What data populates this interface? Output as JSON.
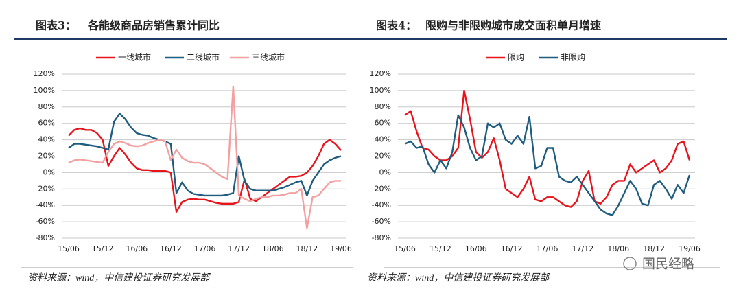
{
  "chart_data": [
    {
      "type": "line",
      "title_prefix": "图表3：",
      "title": "各能级商品房销售累计同比",
      "source": "资料来源：wind，中信建投证券研究发展部",
      "legend": "top",
      "grid": true,
      "categories": [
        "15/06",
        null,
        null,
        null,
        null,
        null,
        "15/12",
        null,
        null,
        null,
        null,
        null,
        "16/06",
        null,
        null,
        null,
        null,
        null,
        "16/12",
        null,
        null,
        null,
        null,
        null,
        "17/06",
        null,
        null,
        null,
        null,
        null,
        "17/12",
        null,
        null,
        null,
        null,
        null,
        "18/06",
        null,
        null,
        null,
        null,
        null,
        "18/12",
        null,
        null,
        null,
        null,
        null,
        "19/06"
      ],
      "ylim": [
        -80,
        120
      ],
      "yticks": [
        {
          "value": 120,
          "label": "120%"
        },
        {
          "value": 100,
          "label": "100%"
        },
        {
          "value": 80,
          "label": "80%"
        },
        {
          "value": 60,
          "label": "60%"
        },
        {
          "value": 40,
          "label": "40%"
        },
        {
          "value": 20,
          "label": "20%"
        },
        {
          "value": 0,
          "label": "0%"
        },
        {
          "value": -20,
          "label": "-20%"
        },
        {
          "value": -40,
          "label": "-40%"
        },
        {
          "value": -60,
          "label": "-60%"
        },
        {
          "value": -80,
          "label": "-80%"
        }
      ],
      "series": [
        {
          "name": "一线城市",
          "color": "#e8141b",
          "values": [
            45,
            52,
            54,
            52,
            52,
            48,
            40,
            8,
            20,
            30,
            22,
            12,
            5,
            3,
            3,
            2,
            2,
            2,
            0,
            -48,
            -36,
            -33,
            -32,
            -33,
            -33,
            -35,
            -37,
            -38,
            -38,
            -38,
            -36,
            -8,
            -32,
            -35,
            -30,
            -25,
            -20,
            -15,
            -10,
            -5,
            -5,
            -4,
            0,
            8,
            20,
            35,
            40,
            35,
            27
          ]
        },
        {
          "name": "二线城市",
          "color": "#1f5c7f",
          "values": [
            30,
            35,
            35,
            34,
            33,
            32,
            30,
            28,
            62,
            72,
            65,
            55,
            48,
            46,
            45,
            42,
            40,
            38,
            35,
            -25,
            -12,
            -22,
            -26,
            -27,
            -28,
            -28,
            -28,
            -28,
            -27,
            -25,
            20,
            -10,
            -20,
            -22,
            -22,
            -22,
            -22,
            -20,
            -18,
            -15,
            -12,
            -10,
            -28,
            -10,
            0,
            10,
            15,
            18,
            20
          ]
        },
        {
          "name": "三线城市",
          "color": "#f4a0a0",
          "values": [
            12,
            15,
            16,
            15,
            14,
            13,
            12,
            25,
            35,
            38,
            36,
            33,
            32,
            33,
            36,
            38,
            40,
            38,
            15,
            28,
            18,
            14,
            12,
            12,
            10,
            5,
            0,
            -5,
            -8,
            105,
            -28,
            -32,
            -35,
            -32,
            -30,
            -30,
            -28,
            -28,
            -27,
            -25,
            -25,
            -20,
            -68,
            -30,
            -28,
            -20,
            -12,
            -10,
            -10
          ]
        }
      ]
    },
    {
      "type": "line",
      "title_prefix": "图表4：",
      "title": "限购与非限购城市成交面积单月增速",
      "source": "资料来源：wind，中信建投证券研究发展部",
      "legend": "top",
      "grid": true,
      "categories": [
        "15/06",
        null,
        null,
        null,
        null,
        null,
        "15/12",
        null,
        null,
        null,
        null,
        null,
        "16/06",
        null,
        null,
        null,
        null,
        null,
        "16/12",
        null,
        null,
        null,
        null,
        null,
        "17/06",
        null,
        null,
        null,
        null,
        null,
        "17/12",
        null,
        null,
        null,
        null,
        null,
        "18/06",
        null,
        null,
        null,
        null,
        null,
        "18/12",
        null,
        null,
        null,
        null,
        null,
        "19/06"
      ],
      "ylim": [
        -80,
        120
      ],
      "yticks": [
        {
          "value": 120,
          "label": "120%"
        },
        {
          "value": 100,
          "label": "100%"
        },
        {
          "value": 80,
          "label": "80%"
        },
        {
          "value": 60,
          "label": "60%"
        },
        {
          "value": 40,
          "label": "40%"
        },
        {
          "value": 20,
          "label": "20%"
        },
        {
          "value": 0,
          "label": "0%"
        },
        {
          "value": -20,
          "label": "-20%"
        },
        {
          "value": -40,
          "label": "-40%"
        },
        {
          "value": -60,
          "label": "-60%"
        },
        {
          "value": -80,
          "label": "-80%"
        }
      ],
      "series": [
        {
          "name": "限购",
          "color": "#e8141b",
          "values": [
            70,
            75,
            50,
            30,
            28,
            20,
            15,
            15,
            20,
            30,
            100,
            65,
            25,
            18,
            25,
            42,
            15,
            -20,
            -25,
            -30,
            -20,
            -5,
            -33,
            -35,
            -30,
            -30,
            -35,
            -40,
            -42,
            -35,
            -10,
            2,
            -35,
            -38,
            -30,
            -15,
            -10,
            -10,
            10,
            0,
            5,
            10,
            15,
            0,
            5,
            15,
            35,
            38,
            15
          ]
        },
        {
          "name": "非限购",
          "color": "#1f5c7f",
          "values": [
            35,
            38,
            30,
            32,
            10,
            0,
            15,
            5,
            25,
            70,
            55,
            30,
            15,
            20,
            60,
            55,
            60,
            40,
            35,
            45,
            35,
            68,
            5,
            8,
            30,
            30,
            -5,
            -10,
            -12,
            -5,
            -15,
            -25,
            -35,
            -45,
            -50,
            -52,
            -40,
            -25,
            -10,
            -20,
            -38,
            -40,
            -15,
            -10,
            -20,
            -32,
            -15,
            -25,
            -3
          ]
        }
      ]
    }
  ],
  "watermark": "国民经略"
}
